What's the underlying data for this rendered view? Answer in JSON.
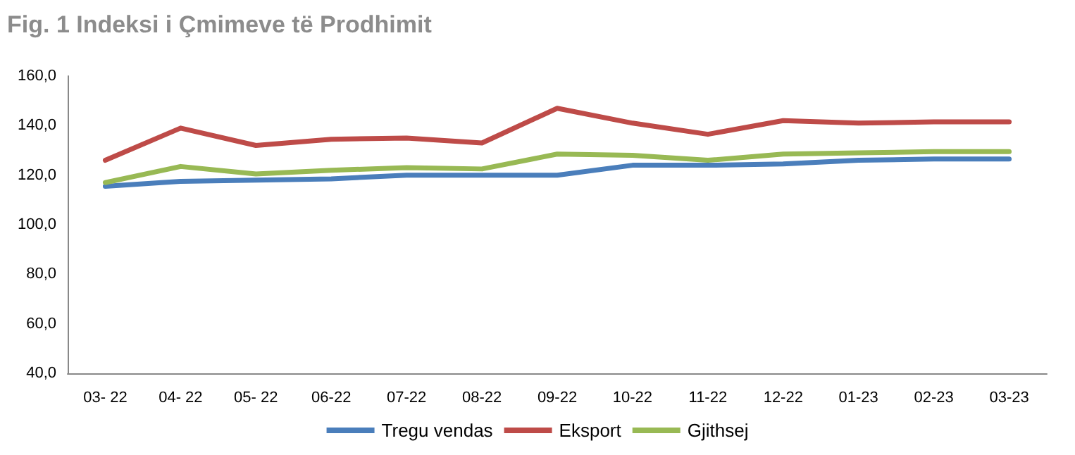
{
  "chart_data": {
    "type": "line",
    "title": "Fig. 1 Indeksi i Çmimeve të Prodhimit",
    "categories": [
      "03- 22",
      "04- 22",
      "05- 22",
      "06-22",
      "07-22",
      "08-22",
      "09-22",
      "10-22",
      "11-22",
      "12-22",
      "01-23",
      "02-23",
      "03-23"
    ],
    "series": [
      {
        "name": "Tregu vendas",
        "color": "#4a7ebb",
        "values": [
          115.5,
          117.5,
          118,
          118.5,
          120,
          120,
          120,
          124,
          124,
          124.5,
          126,
          126.5,
          126.5
        ]
      },
      {
        "name": "Eksport",
        "color": "#be4b48",
        "values": [
          126,
          139,
          132,
          134.5,
          135,
          133,
          147,
          141,
          136.5,
          142,
          141,
          141.5,
          141.5
        ]
      },
      {
        "name": "Gjithsej",
        "color": "#98b954",
        "values": [
          117,
          123.5,
          120.5,
          122,
          123,
          122.5,
          128.5,
          128,
          126,
          128.5,
          129,
          129.5,
          129.5
        ]
      }
    ],
    "ylim": [
      40,
      160
    ],
    "yticks": [
      {
        "value": 40,
        "label": "40,0"
      },
      {
        "value": 60,
        "label": "60,0"
      },
      {
        "value": 80,
        "label": "80,0"
      },
      {
        "value": 100,
        "label": "100,0"
      },
      {
        "value": 120,
        "label": "120,0"
      },
      {
        "value": 140,
        "label": "140,0"
      },
      {
        "value": 160,
        "label": "160,0"
      }
    ],
    "grid": false,
    "legend": "bottom",
    "marker": "none",
    "line_style": "solid"
  }
}
